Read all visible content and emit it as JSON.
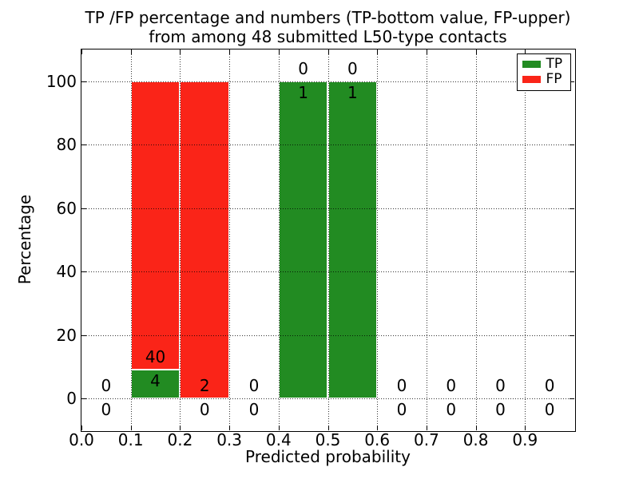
{
  "figure": {
    "background_color": "#ffffff"
  },
  "chart_data": {
    "type": "bar",
    "stacked": true,
    "title_line1": "TP /FP percentage and numbers (TP-bottom value, FP-upper)",
    "title_line2": "from among 48 submitted L50-type contacts",
    "xlabel": "Predicted probability",
    "ylabel": "Percentage",
    "xlim": [
      0.0,
      1.0
    ],
    "ylim": [
      -10,
      110
    ],
    "xtick_values": [
      0.0,
      0.1,
      0.2,
      0.3,
      0.4,
      0.5,
      0.6,
      0.7,
      0.8,
      0.9
    ],
    "xtick_labels": [
      "0.0",
      "0.1",
      "0.2",
      "0.3",
      "0.4",
      "0.5",
      "0.6",
      "0.7",
      "0.8",
      "0.9"
    ],
    "ytick_values": [
      0,
      20,
      40,
      60,
      80,
      100
    ],
    "ytick_labels": [
      "0",
      "20",
      "40",
      "60",
      "80",
      "100"
    ],
    "grid": {
      "visible": true,
      "line_style": "dotted",
      "color": "#000000"
    },
    "total_contacts": 48,
    "bin_width": 0.1,
    "series": [
      {
        "name": "TP",
        "color": "#228b22",
        "values": [
          0,
          4,
          0,
          0,
          1,
          1,
          0,
          0,
          0,
          0
        ]
      },
      {
        "name": "FP",
        "color": "#fa2418",
        "values": [
          0,
          40,
          2,
          0,
          0,
          0,
          0,
          0,
          0,
          0
        ]
      }
    ],
    "bins": [
      {
        "range": [
          0.0,
          0.1
        ],
        "tp": 0,
        "fp": 0,
        "tp_pct": 0,
        "fp_pct": 0
      },
      {
        "range": [
          0.1,
          0.2
        ],
        "tp": 4,
        "fp": 40,
        "tp_pct": 9.09,
        "fp_pct": 90.91
      },
      {
        "range": [
          0.2,
          0.3
        ],
        "tp": 0,
        "fp": 2,
        "tp_pct": 0,
        "fp_pct": 100
      },
      {
        "range": [
          0.3,
          0.4
        ],
        "tp": 0,
        "fp": 0,
        "tp_pct": 0,
        "fp_pct": 0
      },
      {
        "range": [
          0.4,
          0.5
        ],
        "tp": 1,
        "fp": 0,
        "tp_pct": 100,
        "fp_pct": 0
      },
      {
        "range": [
          0.5,
          0.6
        ],
        "tp": 1,
        "fp": 0,
        "tp_pct": 100,
        "fp_pct": 0
      },
      {
        "range": [
          0.6,
          0.7
        ],
        "tp": 0,
        "fp": 0,
        "tp_pct": 0,
        "fp_pct": 0
      },
      {
        "range": [
          0.7,
          0.8
        ],
        "tp": 0,
        "fp": 0,
        "tp_pct": 0,
        "fp_pct": 0
      },
      {
        "range": [
          0.8,
          0.9
        ],
        "tp": 0,
        "fp": 0,
        "tp_pct": 0,
        "fp_pct": 0
      },
      {
        "range": [
          0.9,
          1.0
        ],
        "tp": 0,
        "fp": 0,
        "tp_pct": 0,
        "fp_pct": 0
      }
    ],
    "legend": {
      "position": "upper right",
      "entries": [
        {
          "label": "TP",
          "color": "#228b22"
        },
        {
          "label": "FP",
          "color": "#fa2418"
        }
      ]
    }
  }
}
